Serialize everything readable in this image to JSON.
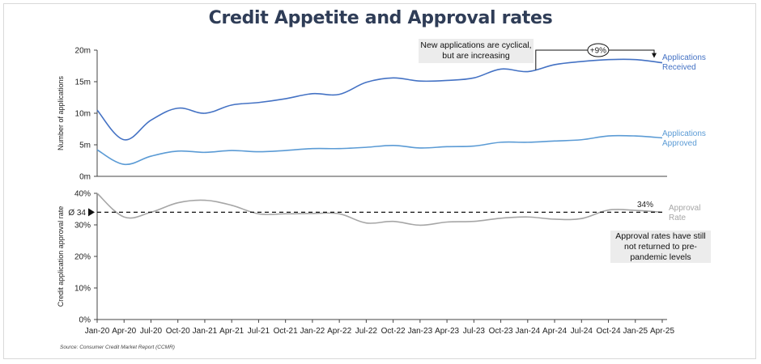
{
  "title": "Credit Appetite and Approval rates",
  "source": "Source: Consumer Credit Market Report (CCMR)",
  "notes": {
    "top": "New applications are cyclical, but are increasing",
    "bottom": "Approval rates have still not returned to pre-pandemic levels",
    "growth_badge": "+9%",
    "avg_marker": "Ø 34",
    "last_rate_label": "34%"
  },
  "colors": {
    "received": "#4472c4",
    "approved": "#5b9bd5",
    "rate": "#a6a6a6",
    "grid": "#d9d9d9",
    "note_bg": "#ececec"
  },
  "chart_data": [
    {
      "type": "line",
      "ylabel": "Number of applications",
      "yticks": [
        "0m",
        "5m",
        "10m",
        "15m",
        "20m"
      ],
      "ylim": [
        0,
        20
      ],
      "x_ticks": [
        "Jan-20",
        "Apr-20",
        "Jul-20",
        "Oct-20",
        "Jan-21",
        "Apr-21",
        "Jul-21",
        "Oct-21",
        "Jan-22",
        "Apr-22",
        "Jul-22",
        "Oct-22",
        "Jan-23",
        "Apr-23",
        "Jul-23",
        "Oct-23",
        "Jan-24",
        "Apr-24",
        "Jul-24",
        "Oct-24",
        "Jan-25",
        "Apr-25"
      ],
      "series": [
        {
          "name": "Applications Received",
          "values": [
            10.5,
            5.8,
            8.9,
            10.8,
            10.0,
            11.3,
            11.7,
            12.3,
            13.1,
            13.0,
            14.9,
            15.6,
            15.1,
            15.2,
            15.6,
            17.0,
            16.6,
            17.7,
            18.2,
            18.5,
            18.5,
            18.0
          ]
        },
        {
          "name": "Applications Approved",
          "values": [
            4.2,
            1.9,
            3.2,
            4.0,
            3.8,
            4.1,
            3.9,
            4.1,
            4.4,
            4.4,
            4.6,
            4.9,
            4.5,
            4.7,
            4.8,
            5.4,
            5.4,
            5.6,
            5.8,
            6.4,
            6.4,
            6.1
          ]
        }
      ],
      "annotation": "+9%"
    },
    {
      "type": "line",
      "ylabel": "Credit application approval rate",
      "yticks": [
        "0%",
        "10%",
        "20%",
        "30%",
        "40%"
      ],
      "ylim": [
        0,
        40
      ],
      "x_ticks": [
        "Jan-20",
        "Apr-20",
        "Jul-20",
        "Oct-20",
        "Jan-21",
        "Apr-21",
        "Jul-21",
        "Oct-21",
        "Jan-22",
        "Apr-22",
        "Jul-22",
        "Oct-22",
        "Jan-23",
        "Apr-23",
        "Jul-23",
        "Oct-23",
        "Jan-24",
        "Apr-24",
        "Jul-24",
        "Oct-24",
        "Jan-25",
        "Apr-25"
      ],
      "series": [
        {
          "name": "Approval Rate",
          "values": [
            40.0,
            32.5,
            34.0,
            37.0,
            37.8,
            36.2,
            33.5,
            33.5,
            33.6,
            33.5,
            30.6,
            31.1,
            29.9,
            30.9,
            31.1,
            32.1,
            32.5,
            31.8,
            32.0,
            34.7,
            34.6,
            34.0
          ]
        }
      ],
      "average": 34,
      "annotations": [
        "34%"
      ]
    }
  ]
}
